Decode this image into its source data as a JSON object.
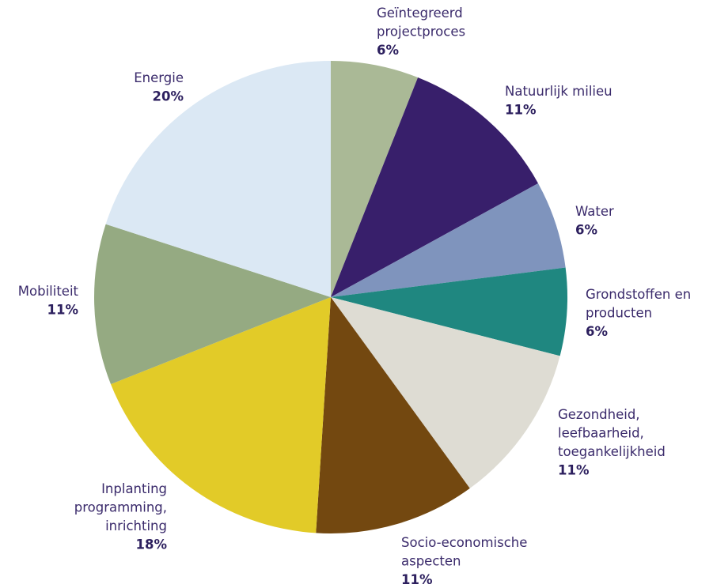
{
  "chart_data": {
    "type": "pie",
    "title": "",
    "start_angle_deg": 0,
    "direction": "clockwise",
    "slices": [
      {
        "label_lines": [
          "Geïntegreerd",
          "projectproces"
        ],
        "value": 6,
        "value_label": "6%",
        "color": "#aab996"
      },
      {
        "label_lines": [
          "Natuurlijk milieu"
        ],
        "value": 11,
        "value_label": "11%",
        "color": "#381f6b"
      },
      {
        "label_lines": [
          "Water"
        ],
        "value": 6,
        "value_label": "6%",
        "color": "#7f94bd"
      },
      {
        "label_lines": [
          "Grondstoffen en",
          "producten"
        ],
        "value": 6,
        "value_label": "6%",
        "color": "#1f8780"
      },
      {
        "label_lines": [
          "Gezondheid,",
          "leefbaarheid,",
          "toegankelijkheid"
        ],
        "value": 11,
        "value_label": "11%",
        "color": "#dedcd3"
      },
      {
        "label_lines": [
          "Socio-economische",
          "aspecten"
        ],
        "value": 11,
        "value_label": "11%",
        "color": "#734810"
      },
      {
        "label_lines": [
          "Inplanting",
          "programming,",
          "inrichting"
        ],
        "value": 18,
        "value_label": "18%",
        "color": "#e2cb28"
      },
      {
        "label_lines": [
          "Mobiliteit"
        ],
        "value": 11,
        "value_label": "11%",
        "color": "#95aa82"
      },
      {
        "label_lines": [
          "Energie"
        ],
        "value": 20,
        "value_label": "20%",
        "color": "#dbe8f4"
      }
    ],
    "label_text_color": "#3a2a6b"
  }
}
